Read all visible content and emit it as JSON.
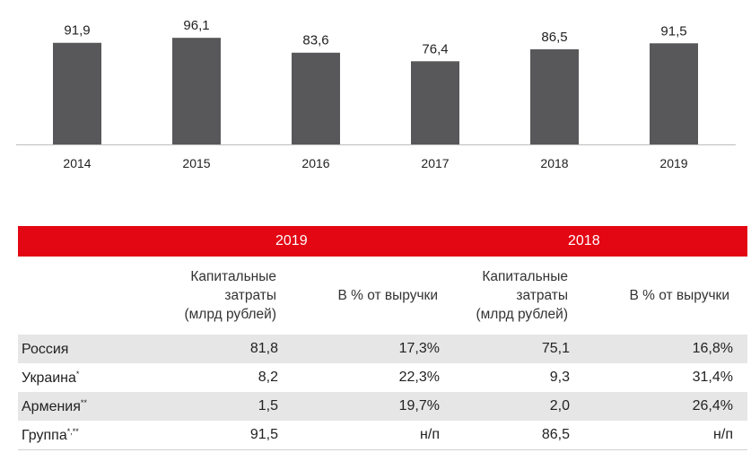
{
  "chart_data": {
    "type": "bar",
    "categories": [
      "2014",
      "2015",
      "2016",
      "2017",
      "2018",
      "2019"
    ],
    "values": [
      91.9,
      96.1,
      83.6,
      76.4,
      86.5,
      91.5
    ],
    "value_labels": [
      "91,9",
      "96,1",
      "83,6",
      "76,4",
      "86,5",
      "91,5"
    ],
    "ylim": [
      0,
      100
    ],
    "bar_color": "#58585a",
    "grid": false
  },
  "table": {
    "accent_color": "#e30613",
    "years": [
      "2019",
      "2018"
    ],
    "col_capex": "Капитальные\nзатраты\n(млрд рублей)",
    "col_pct": "В % от выручки",
    "rows": [
      {
        "name": "Россия",
        "sup": "",
        "capex2019": "81,8",
        "pct2019": "17,3%",
        "capex2018": "75,1",
        "pct2018": "16,8%"
      },
      {
        "name": "Украина",
        "sup": "*",
        "capex2019": "8,2",
        "pct2019": "22,3%",
        "capex2018": "9,3",
        "pct2018": "31,4%"
      },
      {
        "name": "Армения",
        "sup": "**",
        "capex2019": "1,5",
        "pct2019": "19,7%",
        "capex2018": "2,0",
        "pct2018": "26,4%"
      },
      {
        "name": "Группа",
        "sup": "*,**",
        "capex2019": "91,5",
        "pct2019": "н/п",
        "capex2018": "86,5",
        "pct2018": "н/п"
      }
    ]
  }
}
